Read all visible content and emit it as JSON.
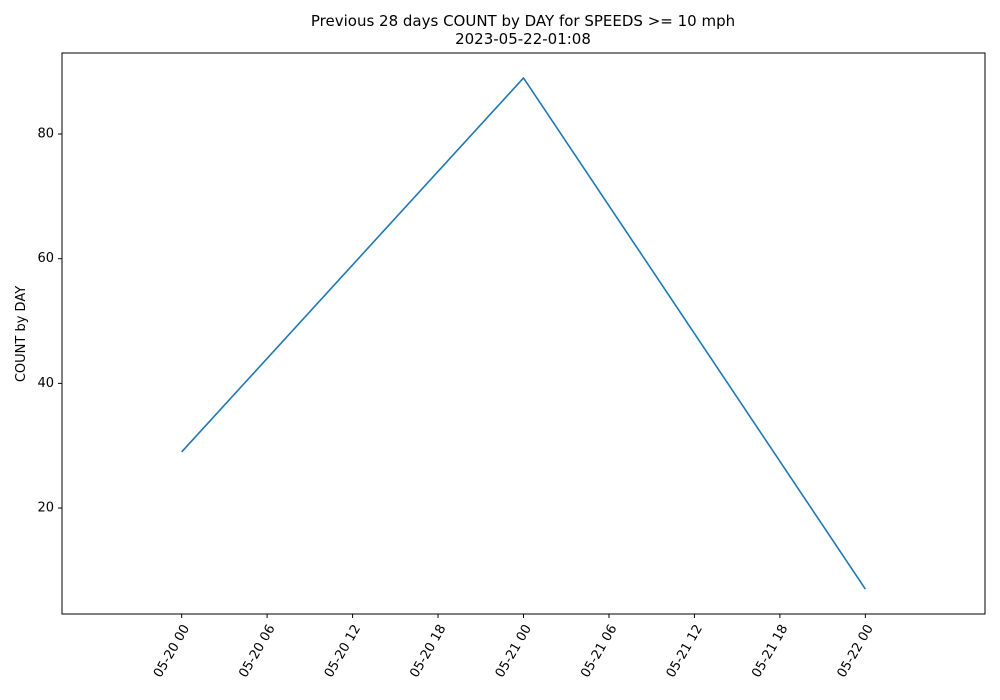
{
  "chart_data": {
    "type": "line",
    "title": "Previous 28 days COUNT by DAY for SPEEDS >= 10 mph",
    "subtitle": "2023-05-22-01:08",
    "xlabel": "",
    "ylabel": "COUNT by DAY",
    "x": [
      "2023-05-20 00:00",
      "2023-05-21 00:00",
      "2023-05-22 00:00"
    ],
    "series": [
      {
        "values": [
          29,
          89,
          7
        ],
        "color": "#1f77b4"
      }
    ],
    "xlim": [
      "2023-05-19 15:36",
      "2023-05-22 08:24"
    ],
    "ylim": [
      3.0,
      93.0
    ],
    "x_ticks": [
      "05-20 00",
      "05-20 06",
      "05-20 12",
      "05-20 18",
      "05-21 00",
      "05-21 06",
      "05-21 12",
      "05-21 18",
      "05-22 00"
    ],
    "x_tick_values": [
      "2023-05-20 00:00",
      "2023-05-20 06:00",
      "2023-05-20 12:00",
      "2023-05-20 18:00",
      "2023-05-21 00:00",
      "2023-05-21 06:00",
      "2023-05-21 12:00",
      "2023-05-21 18:00",
      "2023-05-22 00:00"
    ],
    "y_ticks": [
      20,
      40,
      60,
      80
    ],
    "grid": false,
    "legend": "none"
  }
}
